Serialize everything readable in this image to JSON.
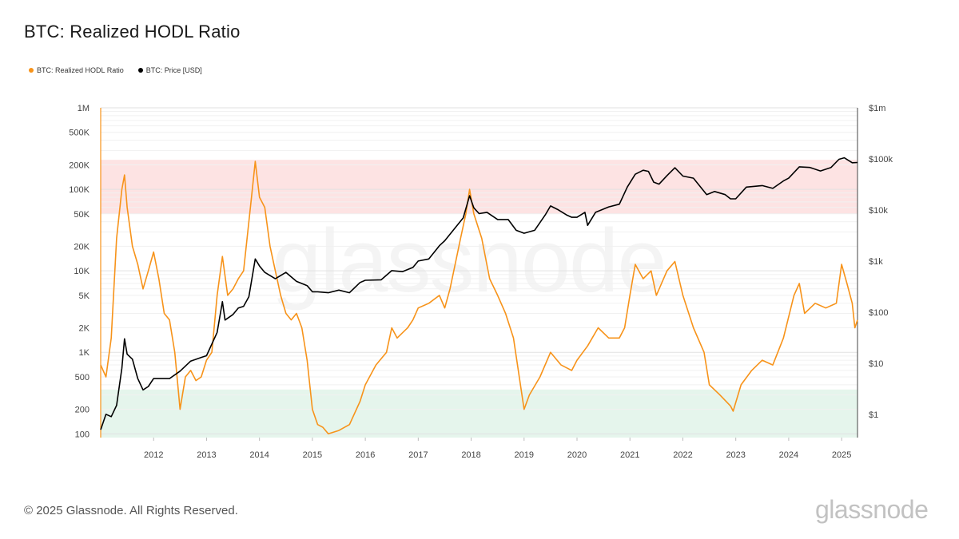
{
  "title": "BTC: Realized HODL Ratio",
  "legend": [
    {
      "label": "BTC: Realized HODL Ratio",
      "color": "#f7931a"
    },
    {
      "label": "BTC: Price [USD]",
      "color": "#000000"
    }
  ],
  "watermark": "glassnode",
  "footer": {
    "copyright": "© 2025 Glassnode. All Rights Reserved.",
    "logo": "glassnode"
  },
  "colors": {
    "hodl": "#f7931a",
    "price": "#000000",
    "red_band": "#fde3e3",
    "green_band": "#e5f5ec",
    "grid": "#ececec"
  },
  "chart_data": {
    "type": "line",
    "title": "BTC: Realized HODL Ratio",
    "xlabel": "",
    "ylabel": "",
    "x_range": [
      2011.0,
      2025.3
    ],
    "x_ticks": [
      {
        "v": 2012,
        "label": "2012"
      },
      {
        "v": 2013,
        "label": "2013"
      },
      {
        "v": 2014,
        "label": "2014"
      },
      {
        "v": 2015,
        "label": "2015"
      },
      {
        "v": 2016,
        "label": "2016"
      },
      {
        "v": 2017,
        "label": "2017"
      },
      {
        "v": 2018,
        "label": "2018"
      },
      {
        "v": 2019,
        "label": "2019"
      },
      {
        "v": 2020,
        "label": "2020"
      },
      {
        "v": 2021,
        "label": "2021"
      },
      {
        "v": 2022,
        "label": "2022"
      },
      {
        "v": 2023,
        "label": "2023"
      },
      {
        "v": 2024,
        "label": "2024"
      },
      {
        "v": 2025,
        "label": "2025"
      }
    ],
    "y_left": {
      "scale": "log",
      "range": [
        90,
        1000000
      ],
      "ticks": [
        {
          "v": 1000000,
          "label": "1M"
        },
        {
          "v": 500000,
          "label": "500K"
        },
        {
          "v": 200000,
          "label": "200K"
        },
        {
          "v": 100000,
          "label": "100K"
        },
        {
          "v": 50000,
          "label": "50K"
        },
        {
          "v": 20000,
          "label": "20K"
        },
        {
          "v": 10000,
          "label": "10K"
        },
        {
          "v": 5000,
          "label": "5K"
        },
        {
          "v": 2000,
          "label": "2K"
        },
        {
          "v": 1000,
          "label": "1K"
        },
        {
          "v": 500,
          "label": "500"
        },
        {
          "v": 200,
          "label": "200"
        },
        {
          "v": 100,
          "label": "100"
        }
      ]
    },
    "y_right": {
      "scale": "log",
      "range": [
        0.35,
        1000000
      ],
      "ticks": [
        {
          "v": 1000000,
          "label": "$1m"
        },
        {
          "v": 100000,
          "label": "$100k"
        },
        {
          "v": 10000,
          "label": "$10k"
        },
        {
          "v": 1000,
          "label": "$1k"
        },
        {
          "v": 100,
          "label": "$100"
        },
        {
          "v": 10,
          "label": "$10"
        },
        {
          "v": 1,
          "label": "$1"
        }
      ]
    },
    "bands": [
      {
        "name": "overheated-zone",
        "from": 50000,
        "to": 230000,
        "color": "#fde3e3"
      },
      {
        "name": "undervalued-zone",
        "from": 90,
        "to": 350,
        "color": "#e5f5ec"
      }
    ],
    "series": [
      {
        "name": "BTC: Realized HODL Ratio",
        "axis": "left",
        "color": "#f7931a",
        "points": [
          [
            2011.0,
            700
          ],
          [
            2011.1,
            500
          ],
          [
            2011.2,
            1500
          ],
          [
            2011.3,
            25000
          ],
          [
            2011.4,
            100000
          ],
          [
            2011.45,
            150000
          ],
          [
            2011.5,
            60000
          ],
          [
            2011.6,
            20000
          ],
          [
            2011.7,
            12000
          ],
          [
            2011.8,
            6000
          ],
          [
            2011.9,
            10000
          ],
          [
            2012.0,
            17000
          ],
          [
            2012.1,
            8000
          ],
          [
            2012.2,
            3000
          ],
          [
            2012.3,
            2500
          ],
          [
            2012.4,
            1000
          ],
          [
            2012.5,
            200
          ],
          [
            2012.6,
            500
          ],
          [
            2012.7,
            600
          ],
          [
            2012.8,
            450
          ],
          [
            2012.9,
            500
          ],
          [
            2013.0,
            800
          ],
          [
            2013.1,
            1000
          ],
          [
            2013.2,
            5000
          ],
          [
            2013.3,
            15000
          ],
          [
            2013.4,
            5000
          ],
          [
            2013.5,
            6000
          ],
          [
            2013.6,
            8000
          ],
          [
            2013.7,
            10000
          ],
          [
            2013.85,
            80000
          ],
          [
            2013.92,
            220000
          ],
          [
            2014.0,
            80000
          ],
          [
            2014.1,
            60000
          ],
          [
            2014.2,
            20000
          ],
          [
            2014.3,
            10000
          ],
          [
            2014.4,
            5000
          ],
          [
            2014.5,
            3000
          ],
          [
            2014.6,
            2500
          ],
          [
            2014.7,
            3000
          ],
          [
            2014.8,
            2000
          ],
          [
            2014.9,
            800
          ],
          [
            2015.0,
            200
          ],
          [
            2015.1,
            130
          ],
          [
            2015.2,
            120
          ],
          [
            2015.3,
            100
          ],
          [
            2015.5,
            110
          ],
          [
            2015.7,
            130
          ],
          [
            2015.9,
            250
          ],
          [
            2016.0,
            400
          ],
          [
            2016.2,
            700
          ],
          [
            2016.4,
            1000
          ],
          [
            2016.5,
            2000
          ],
          [
            2016.6,
            1500
          ],
          [
            2016.8,
            2000
          ],
          [
            2016.9,
            2500
          ],
          [
            2017.0,
            3500
          ],
          [
            2017.2,
            4000
          ],
          [
            2017.4,
            5000
          ],
          [
            2017.5,
            3500
          ],
          [
            2017.6,
            6000
          ],
          [
            2017.8,
            25000
          ],
          [
            2017.9,
            50000
          ],
          [
            2017.97,
            100000
          ],
          [
            2018.05,
            50000
          ],
          [
            2018.2,
            25000
          ],
          [
            2018.35,
            8000
          ],
          [
            2018.5,
            5000
          ],
          [
            2018.65,
            3000
          ],
          [
            2018.8,
            1500
          ],
          [
            2019.0,
            200
          ],
          [
            2019.1,
            300
          ],
          [
            2019.3,
            500
          ],
          [
            2019.5,
            1000
          ],
          [
            2019.7,
            700
          ],
          [
            2019.9,
            600
          ],
          [
            2020.0,
            800
          ],
          [
            2020.2,
            1200
          ],
          [
            2020.4,
            2000
          ],
          [
            2020.6,
            1500
          ],
          [
            2020.8,
            1500
          ],
          [
            2020.9,
            2000
          ],
          [
            2021.0,
            5000
          ],
          [
            2021.1,
            12000
          ],
          [
            2021.25,
            8000
          ],
          [
            2021.4,
            10000
          ],
          [
            2021.5,
            5000
          ],
          [
            2021.7,
            10000
          ],
          [
            2021.85,
            13000
          ],
          [
            2022.0,
            5000
          ],
          [
            2022.2,
            2000
          ],
          [
            2022.4,
            1000
          ],
          [
            2022.5,
            400
          ],
          [
            2022.7,
            300
          ],
          [
            2022.9,
            220
          ],
          [
            2022.95,
            190
          ],
          [
            2023.1,
            400
          ],
          [
            2023.3,
            600
          ],
          [
            2023.5,
            800
          ],
          [
            2023.7,
            700
          ],
          [
            2023.9,
            1500
          ],
          [
            2024.1,
            5000
          ],
          [
            2024.2,
            7000
          ],
          [
            2024.3,
            3000
          ],
          [
            2024.5,
            4000
          ],
          [
            2024.7,
            3500
          ],
          [
            2024.9,
            4000
          ],
          [
            2025.0,
            12000
          ],
          [
            2025.1,
            7000
          ],
          [
            2025.2,
            4000
          ],
          [
            2025.25,
            2000
          ],
          [
            2025.3,
            2500
          ]
        ]
      },
      {
        "name": "BTC: Price [USD]",
        "axis": "right",
        "color": "#000000",
        "points": [
          [
            2011.0,
            0.5
          ],
          [
            2011.1,
            1
          ],
          [
            2011.2,
            0.9
          ],
          [
            2011.3,
            1.5
          ],
          [
            2011.4,
            8
          ],
          [
            2011.45,
            30
          ],
          [
            2011.5,
            15
          ],
          [
            2011.6,
            12
          ],
          [
            2011.7,
            5
          ],
          [
            2011.8,
            3
          ],
          [
            2011.9,
            3.5
          ],
          [
            2012.0,
            5
          ],
          [
            2012.3,
            5
          ],
          [
            2012.5,
            7
          ],
          [
            2012.7,
            11
          ],
          [
            2012.9,
            13
          ],
          [
            2013.0,
            14
          ],
          [
            2013.2,
            40
          ],
          [
            2013.3,
            160
          ],
          [
            2013.35,
            70
          ],
          [
            2013.5,
            90
          ],
          [
            2013.6,
            120
          ],
          [
            2013.7,
            130
          ],
          [
            2013.8,
            200
          ],
          [
            2013.92,
            1100
          ],
          [
            2014.0,
            800
          ],
          [
            2014.1,
            600
          ],
          [
            2014.3,
            450
          ],
          [
            2014.5,
            600
          ],
          [
            2014.7,
            400
          ],
          [
            2014.9,
            330
          ],
          [
            2015.0,
            250
          ],
          [
            2015.1,
            250
          ],
          [
            2015.3,
            240
          ],
          [
            2015.5,
            270
          ],
          [
            2015.7,
            240
          ],
          [
            2015.9,
            380
          ],
          [
            2016.0,
            420
          ],
          [
            2016.3,
            430
          ],
          [
            2016.5,
            650
          ],
          [
            2016.7,
            620
          ],
          [
            2016.9,
            750
          ],
          [
            2017.0,
            1000
          ],
          [
            2017.2,
            1100
          ],
          [
            2017.4,
            2000
          ],
          [
            2017.5,
            2500
          ],
          [
            2017.7,
            4500
          ],
          [
            2017.85,
            7000
          ],
          [
            2017.97,
            19000
          ],
          [
            2018.05,
            11000
          ],
          [
            2018.15,
            8500
          ],
          [
            2018.3,
            9000
          ],
          [
            2018.5,
            6500
          ],
          [
            2018.7,
            6500
          ],
          [
            2018.85,
            4000
          ],
          [
            2019.0,
            3500
          ],
          [
            2019.2,
            4000
          ],
          [
            2019.4,
            8000
          ],
          [
            2019.5,
            12000
          ],
          [
            2019.65,
            10000
          ],
          [
            2019.8,
            8000
          ],
          [
            2019.9,
            7200
          ],
          [
            2020.0,
            7200
          ],
          [
            2020.15,
            9000
          ],
          [
            2020.2,
            5000
          ],
          [
            2020.35,
            9000
          ],
          [
            2020.6,
            11500
          ],
          [
            2020.8,
            13000
          ],
          [
            2020.95,
            28000
          ],
          [
            2021.1,
            50000
          ],
          [
            2021.25,
            60000
          ],
          [
            2021.35,
            57000
          ],
          [
            2021.45,
            35000
          ],
          [
            2021.55,
            32000
          ],
          [
            2021.7,
            47000
          ],
          [
            2021.85,
            67000
          ],
          [
            2022.0,
            46000
          ],
          [
            2022.2,
            42000
          ],
          [
            2022.45,
            20000
          ],
          [
            2022.6,
            23000
          ],
          [
            2022.8,
            20000
          ],
          [
            2022.9,
            16500
          ],
          [
            2023.0,
            16600
          ],
          [
            2023.2,
            28000
          ],
          [
            2023.5,
            30000
          ],
          [
            2023.7,
            26500
          ],
          [
            2023.9,
            37000
          ],
          [
            2024.0,
            42000
          ],
          [
            2024.2,
            70000
          ],
          [
            2024.4,
            68000
          ],
          [
            2024.6,
            58000
          ],
          [
            2024.8,
            68000
          ],
          [
            2024.95,
            98000
          ],
          [
            2025.05,
            105000
          ],
          [
            2025.2,
            84000
          ],
          [
            2025.3,
            85000
          ]
        ]
      }
    ]
  }
}
